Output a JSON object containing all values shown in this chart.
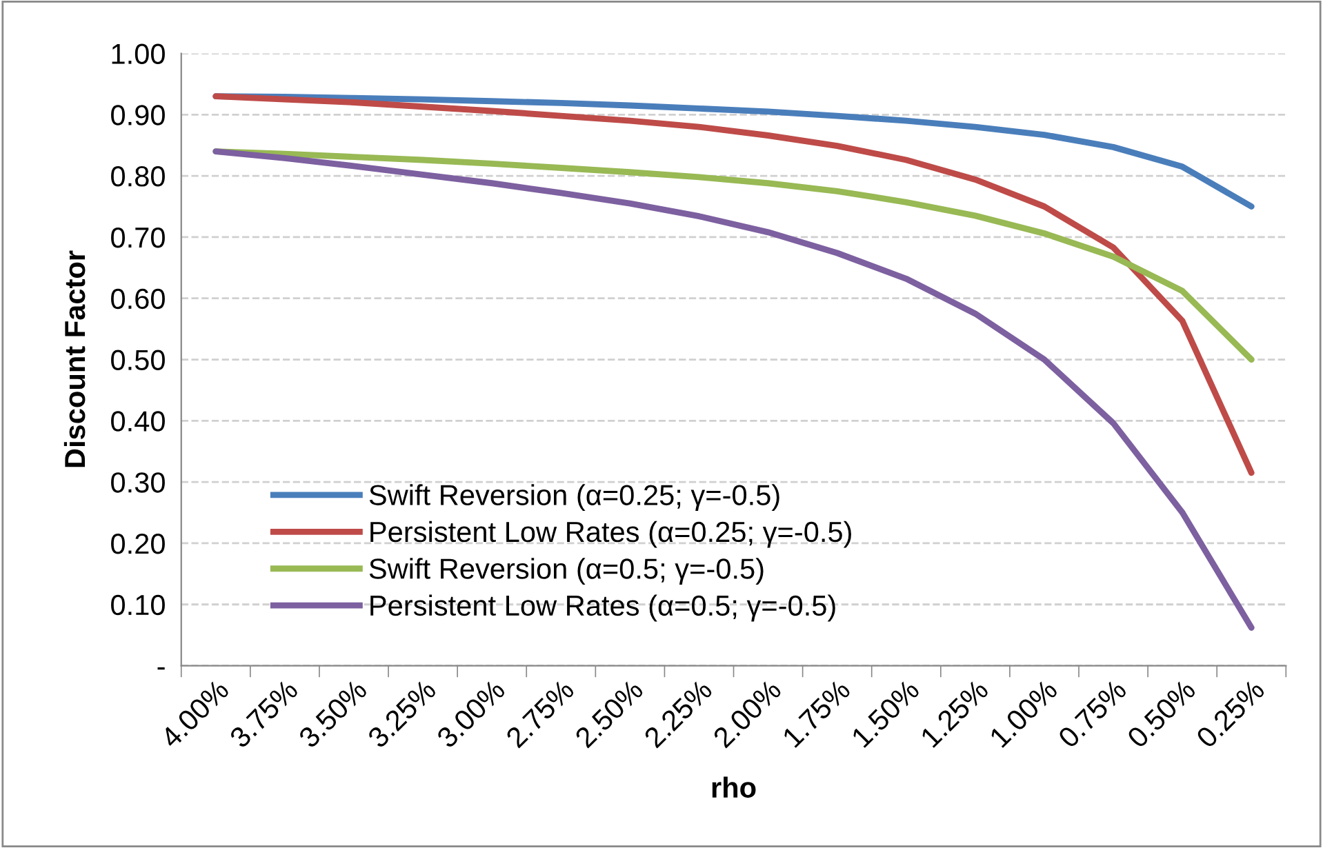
{
  "chart_data": {
    "type": "line",
    "xlabel": "rho",
    "ylabel": "Discount Factor",
    "categories": [
      "4.00%",
      "3.75%",
      "3.50%",
      "3.25%",
      "3.00%",
      "2.75%",
      "2.50%",
      "2.25%",
      "2.00%",
      "1.75%",
      "1.50%",
      "1.25%",
      "1.00%",
      "0.75%",
      "0.50%",
      "0.25%"
    ],
    "series": [
      {
        "name": "Swift Reversion (α=0.25; γ=-0.5)",
        "color": "#4a7ebb",
        "values": [
          0.93,
          0.929,
          0.927,
          0.925,
          0.922,
          0.919,
          0.915,
          0.91,
          0.905,
          0.898,
          0.89,
          0.88,
          0.867,
          0.847,
          0.815,
          0.75
        ]
      },
      {
        "name": "Persistent Low Rates (α=0.25; γ=-0.5)",
        "color": "#be4b48",
        "values": [
          0.93,
          0.925,
          0.92,
          0.913,
          0.906,
          0.898,
          0.89,
          0.88,
          0.866,
          0.849,
          0.826,
          0.794,
          0.75,
          0.683,
          0.563,
          0.315
        ]
      },
      {
        "name": "Swift Reversion (α=0.5; γ=-0.5)",
        "color": "#98b954",
        "values": [
          0.84,
          0.836,
          0.831,
          0.826,
          0.82,
          0.813,
          0.806,
          0.798,
          0.788,
          0.775,
          0.757,
          0.735,
          0.706,
          0.668,
          0.612,
          0.5
        ]
      },
      {
        "name": "Persistent Low Rates (α=0.5; γ=-0.5)",
        "color": "#7d60a0",
        "values": [
          0.84,
          0.829,
          0.816,
          0.802,
          0.788,
          0.772,
          0.755,
          0.734,
          0.708,
          0.674,
          0.632,
          0.575,
          0.5,
          0.396,
          0.25,
          0.062
        ]
      }
    ],
    "ylim": [
      0,
      1.0
    ],
    "yticks": [
      {
        "value": 0,
        "label": "-"
      },
      {
        "value": 0.1,
        "label": "0.10"
      },
      {
        "value": 0.2,
        "label": "0.20"
      },
      {
        "value": 0.3,
        "label": "0.30"
      },
      {
        "value": 0.4,
        "label": "0.40"
      },
      {
        "value": 0.5,
        "label": "0.50"
      },
      {
        "value": 0.6,
        "label": "0.60"
      },
      {
        "value": 0.7,
        "label": "0.70"
      },
      {
        "value": 0.8,
        "label": "0.80"
      },
      {
        "value": 0.9,
        "label": "0.90"
      },
      {
        "value": 1.0,
        "label": "1.00"
      }
    ],
    "grid": "y",
    "legend": "bottom left",
    "marker": "none",
    "line_style": "solid"
  }
}
